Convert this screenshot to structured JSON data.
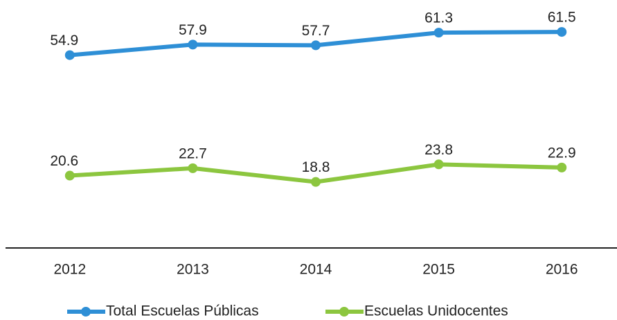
{
  "chart_data": {
    "type": "line",
    "categories": [
      "2012",
      "2013",
      "2014",
      "2015",
      "2016"
    ],
    "series": [
      {
        "name": "Total Escuelas Públicas",
        "color": "#2e8fd6",
        "values": [
          54.9,
          57.9,
          57.7,
          61.3,
          61.5
        ]
      },
      {
        "name": "Escuelas Unidocentes",
        "color": "#8cc63f",
        "values": [
          20.6,
          22.7,
          18.8,
          23.8,
          22.9
        ]
      }
    ],
    "ylim": [
      0,
      70
    ],
    "grid": false,
    "legend": "bottom"
  }
}
